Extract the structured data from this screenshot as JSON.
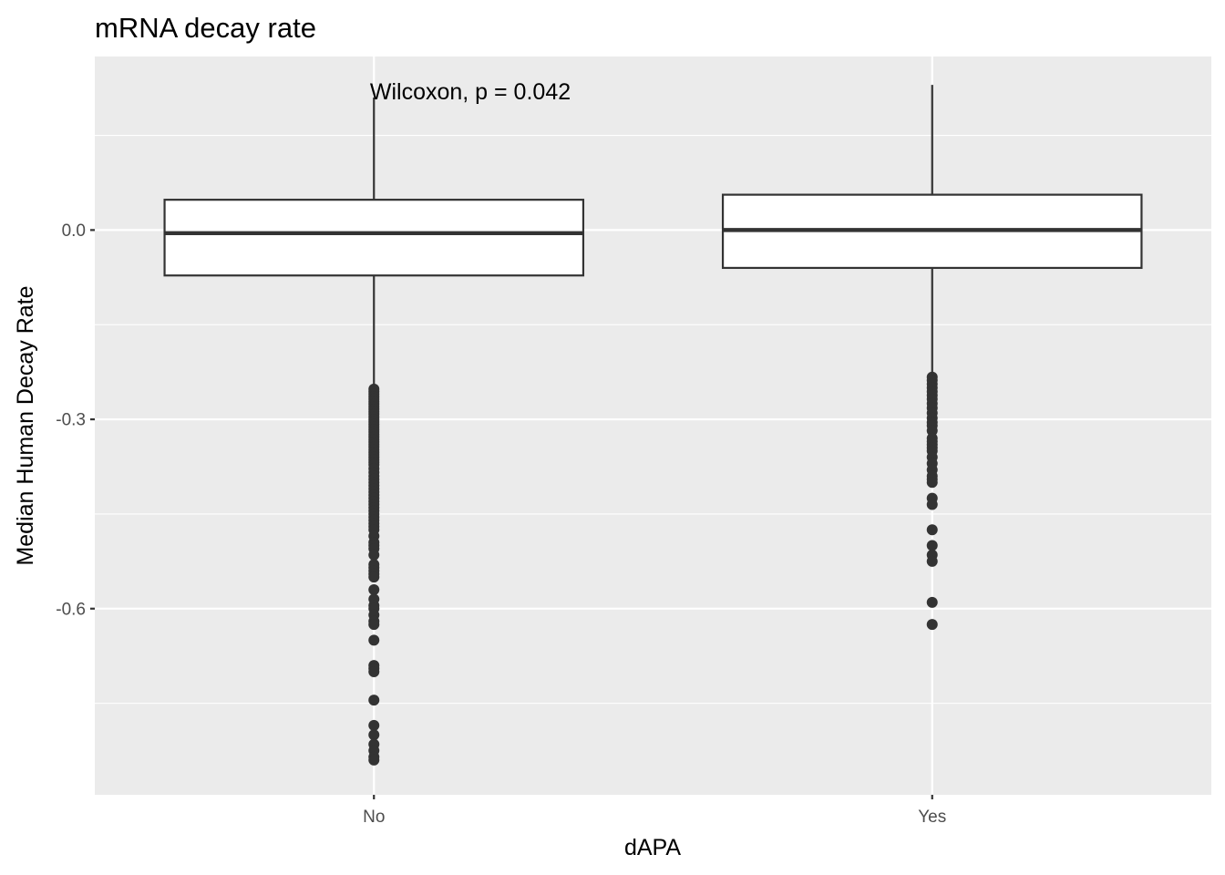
{
  "chart_data": {
    "type": "boxplot",
    "title": "mRNA decay rate",
    "xlabel": "dAPA",
    "ylabel": "Median Human Decay Rate",
    "categories": [
      "No",
      "Yes"
    ],
    "y_ticks": [
      "0.0",
      "-0.3",
      "-0.6"
    ],
    "y_tick_values": [
      0.0,
      -0.3,
      -0.6
    ],
    "ylim": [
      -0.895,
      0.275
    ],
    "grid": true,
    "annotation": "Wilcoxon, p = 0.042",
    "boxes": [
      {
        "category": "No",
        "q1": -0.072,
        "median": -0.005,
        "q3": 0.048,
        "whisker_low": -0.25,
        "whisker_high": 0.21,
        "outliers": [
          -0.252,
          -0.256,
          -0.26,
          -0.264,
          -0.268,
          -0.272,
          -0.276,
          -0.28,
          -0.284,
          -0.288,
          -0.292,
          -0.296,
          -0.3,
          -0.304,
          -0.308,
          -0.312,
          -0.316,
          -0.32,
          -0.324,
          -0.328,
          -0.332,
          -0.336,
          -0.34,
          -0.344,
          -0.348,
          -0.352,
          -0.356,
          -0.36,
          -0.364,
          -0.368,
          -0.372,
          -0.378,
          -0.384,
          -0.39,
          -0.395,
          -0.4,
          -0.405,
          -0.41,
          -0.415,
          -0.42,
          -0.425,
          -0.43,
          -0.435,
          -0.44,
          -0.445,
          -0.45,
          -0.455,
          -0.46,
          -0.465,
          -0.47,
          -0.475,
          -0.485,
          -0.495,
          -0.5,
          -0.505,
          -0.515,
          -0.53,
          -0.535,
          -0.54,
          -0.545,
          -0.55,
          -0.57,
          -0.585,
          -0.595,
          -0.6,
          -0.61,
          -0.62,
          -0.625,
          -0.65,
          -0.69,
          -0.695,
          -0.7,
          -0.745,
          -0.785,
          -0.8,
          -0.815,
          -0.825,
          -0.835,
          -0.84
        ]
      },
      {
        "category": "Yes",
        "q1": -0.06,
        "median": 0.0,
        "q3": 0.056,
        "whisker_low": -0.23,
        "whisker_high": 0.23,
        "outliers": [
          -0.233,
          -0.238,
          -0.244,
          -0.25,
          -0.256,
          -0.262,
          -0.268,
          -0.275,
          -0.282,
          -0.29,
          -0.298,
          -0.305,
          -0.31,
          -0.318,
          -0.33,
          -0.335,
          -0.34,
          -0.345,
          -0.35,
          -0.36,
          -0.37,
          -0.38,
          -0.39,
          -0.395,
          -0.4,
          -0.425,
          -0.435,
          -0.475,
          -0.5,
          -0.515,
          -0.525,
          -0.59,
          -0.625
        ]
      }
    ]
  }
}
